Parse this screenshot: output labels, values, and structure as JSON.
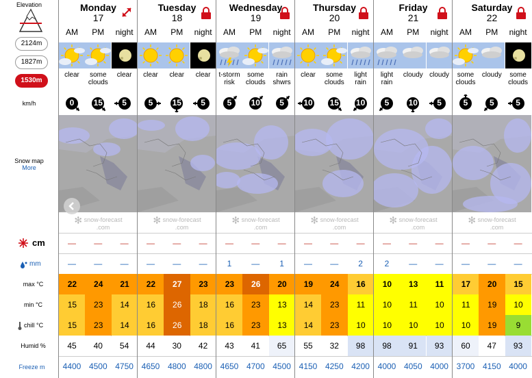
{
  "left": {
    "elevation_title": "Elevation",
    "elevations": [
      "2124m",
      "1827m",
      "1530m"
    ],
    "active_elevation": "1530m",
    "wind_unit": "km/h",
    "snow_map_label": "Snow map",
    "more_label": "More",
    "snow_unit": "cm",
    "rain_unit": "mm",
    "max_label": "max °C",
    "min_label": "min °C",
    "chill_label": "chill °C",
    "humid_label": "Humid %",
    "freeze_label": "Freeze m"
  },
  "periods": [
    "AM",
    "PM",
    "night"
  ],
  "logo_text": "snow-forecast",
  "logo_sub": ".com",
  "colors": {
    "t9": "#99dd33",
    "t10": "#ffff00",
    "t15": "#ffcc33",
    "t20": "#ff9900",
    "t25": "#dd6600",
    "humid_hi": "#d9e3f5"
  },
  "days": [
    {
      "name": "Monday",
      "num": "17",
      "lock": false,
      "icons": [
        "sun-cloud-icon",
        "sun-cloud-icon",
        "moon-icon"
      ],
      "desc": [
        [
          "clear"
        ],
        [
          "some",
          "clouds"
        ],
        [
          "clear"
        ]
      ],
      "wind": [
        {
          "v": "0",
          "dir": "se"
        },
        {
          "v": "15",
          "dir": "se"
        },
        {
          "v": "5",
          "dir": "w"
        }
      ],
      "snow": [
        "—",
        "—",
        "—"
      ],
      "rain": [
        "—",
        "—",
        "—"
      ],
      "max": [
        22,
        24,
        21
      ],
      "min": [
        15,
        23,
        14
      ],
      "chill": [
        15,
        23,
        14
      ],
      "humid": [
        "45",
        "40",
        "54"
      ],
      "freeze": [
        "4400",
        "4500",
        "4750"
      ]
    },
    {
      "name": "Tuesday",
      "num": "18",
      "lock": true,
      "icons": [
        "sun-icon",
        "sun-icon",
        "moon-icon"
      ],
      "desc": [
        [
          "clear"
        ],
        [
          "clear"
        ],
        [
          "clear"
        ]
      ],
      "wind": [
        {
          "v": "5",
          "dir": "e"
        },
        {
          "v": "15",
          "dir": "s"
        },
        {
          "v": "5",
          "dir": "w"
        }
      ],
      "snow": [
        "—",
        "—",
        "—"
      ],
      "rain": [
        "—",
        "—",
        "—"
      ],
      "max": [
        22,
        27,
        23
      ],
      "min": [
        16,
        26,
        18
      ],
      "chill": [
        16,
        26,
        18
      ],
      "humid": [
        "44",
        "30",
        "42"
      ],
      "freeze": [
        "4650",
        "4800",
        "4800"
      ]
    },
    {
      "name": "Wednesday",
      "num": "19",
      "lock": true,
      "icons": [
        "storm-icon",
        "sun-cloud-icon",
        "rain-icon"
      ],
      "desc": [
        [
          "t-storm",
          "risk"
        ],
        [
          "some",
          "clouds"
        ],
        [
          "rain",
          "shwrs"
        ]
      ],
      "wind": [
        {
          "v": "5",
          "dir": "ne"
        },
        {
          "v": "10",
          "dir": "ne"
        },
        {
          "v": "5",
          "dir": "ne"
        }
      ],
      "snow": [
        "—",
        "—",
        "—"
      ],
      "rain": [
        "1",
        "—",
        "1"
      ],
      "max": [
        23,
        26,
        20
      ],
      "min": [
        16,
        23,
        13
      ],
      "chill": [
        16,
        23,
        13
      ],
      "humid": [
        "43",
        "41",
        "65"
      ],
      "freeze": [
        "4650",
        "4700",
        "4500"
      ]
    },
    {
      "name": "Thursday",
      "num": "20",
      "lock": true,
      "icons": [
        "sun-icon",
        "sun-cloud-icon",
        "rain-icon"
      ],
      "desc": [
        [
          "clear"
        ],
        [
          "some",
          "clouds"
        ],
        [
          "light",
          "rain"
        ]
      ],
      "wind": [
        {
          "v": "10",
          "dir": "w"
        },
        {
          "v": "15",
          "dir": "se"
        },
        {
          "v": "10",
          "dir": "sw"
        }
      ],
      "snow": [
        "—",
        "—",
        "—"
      ],
      "rain": [
        "—",
        "—",
        "2"
      ],
      "max": [
        19,
        24,
        16
      ],
      "min": [
        14,
        23,
        11
      ],
      "chill": [
        14,
        23,
        10
      ],
      "humid": [
        "55",
        "32",
        "98"
      ],
      "freeze": [
        "4150",
        "4250",
        "4200"
      ]
    },
    {
      "name": "Friday",
      "num": "21",
      "lock": true,
      "icons": [
        "rain-icon",
        "cloud-icon",
        "cloud-icon"
      ],
      "desc": [
        [
          "light",
          "rain"
        ],
        [
          "cloudy"
        ],
        [
          "cloudy"
        ]
      ],
      "wind": [
        {
          "v": "5",
          "dir": "sw"
        },
        {
          "v": "10",
          "dir": "s"
        },
        {
          "v": "5",
          "dir": "w"
        }
      ],
      "snow": [
        "—",
        "—",
        "—"
      ],
      "rain": [
        "2",
        "—",
        "—"
      ],
      "max": [
        10,
        13,
        11
      ],
      "min": [
        10,
        11,
        10
      ],
      "chill": [
        10,
        10,
        10
      ],
      "humid": [
        "98",
        "91",
        "93"
      ],
      "freeze": [
        "4000",
        "4050",
        "4000"
      ]
    },
    {
      "name": "Saturday",
      "num": "22",
      "lock": true,
      "icons": [
        "sun-cloud-icon",
        "cloud-icon",
        "moon-icon"
      ],
      "desc": [
        [
          "some",
          "clouds"
        ],
        [
          "cloudy"
        ],
        [
          "some",
          "clouds"
        ]
      ],
      "wind": [
        {
          "v": "5",
          "dir": "n"
        },
        {
          "v": "5",
          "dir": "sw"
        },
        {
          "v": "5",
          "dir": "w"
        }
      ],
      "snow": [
        "—",
        "—",
        "—"
      ],
      "rain": [
        "—",
        "—",
        "—"
      ],
      "max": [
        17,
        20,
        15
      ],
      "min": [
        11,
        19,
        10
      ],
      "chill": [
        10,
        19,
        9
      ],
      "humid": [
        "60",
        "47",
        "93"
      ],
      "freeze": [
        "3700",
        "4150",
        "4000"
      ]
    }
  ]
}
